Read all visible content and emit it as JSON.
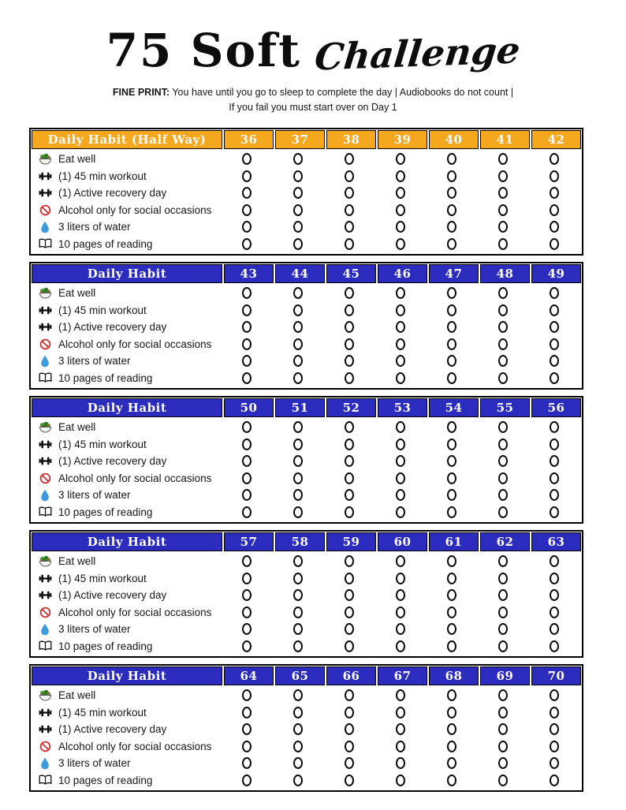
{
  "header": {
    "title_main": "75 Soft",
    "title_script": "Challenge",
    "fine_print_label": "FINE PRINT:",
    "fine_print_rest": " You have until you go to sleep to complete the day  |  Audiobooks do not count  |",
    "fine_print_line2": "If you fail you must start over on Day 1"
  },
  "colors": {
    "gold": "#F5A71E",
    "blue": "#2B2BBD",
    "header_text": "#FFFFFF",
    "no_sign_red": "#CB3333",
    "drop_blue": "#3D9BDC",
    "leaf_green": "#4C9A33",
    "leaf_dark": "#2F7A22",
    "tomato_red": "#C23324",
    "circle_stroke": "#0B0B0B"
  },
  "habits": [
    {
      "icon": "salad-icon",
      "label": "Eat well"
    },
    {
      "icon": "dumbbell-icon",
      "label": "(1) 45 min workout"
    },
    {
      "icon": "dumbbell-icon",
      "label": "(1) Active recovery day"
    },
    {
      "icon": "no-alcohol-icon",
      "label": "Alcohol only for social occasions"
    },
    {
      "icon": "water-drop-icon",
      "label": "3 liters of water"
    },
    {
      "icon": "book-icon",
      "label": "10 pages of reading"
    }
  ],
  "tables": [
    {
      "title": "Daily Habit (Half Way)",
      "theme": "gold",
      "days": [
        "36",
        "37",
        "38",
        "39",
        "40",
        "41",
        "42"
      ]
    },
    {
      "title": "Daily Habit",
      "theme": "blue",
      "days": [
        "43",
        "44",
        "45",
        "46",
        "47",
        "48",
        "49"
      ]
    },
    {
      "title": "Daily Habit",
      "theme": "blue",
      "days": [
        "50",
        "51",
        "52",
        "53",
        "54",
        "55",
        "56"
      ]
    },
    {
      "title": "Daily Habit",
      "theme": "blue",
      "days": [
        "57",
        "58",
        "59",
        "60",
        "61",
        "62",
        "63"
      ]
    },
    {
      "title": "Daily Habit",
      "theme": "blue",
      "days": [
        "64",
        "65",
        "66",
        "67",
        "68",
        "69",
        "70"
      ]
    }
  ]
}
